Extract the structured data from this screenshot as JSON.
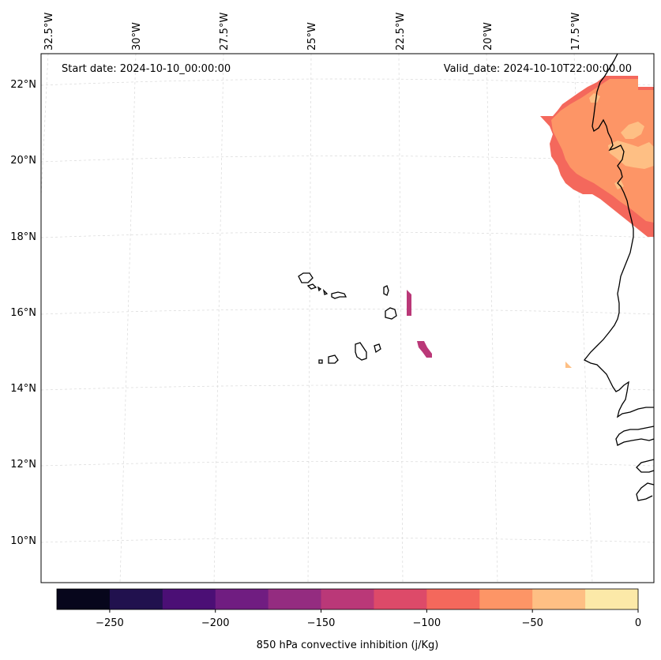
{
  "map": {
    "start_date": "Start date: 2024-10-10_00:00:00",
    "valid_date": "Valid_date: 2024-10-10T22:00:00.00",
    "lon_labels": [
      "32.5°W",
      "30°W",
      "27.5°W",
      "25°W",
      "22.5°W",
      "20°W",
      "17.5°W"
    ],
    "lat_labels": [
      "22°N",
      "20°N",
      "18°N",
      "16°N",
      "14°N",
      "12°N",
      "10°N"
    ],
    "extent": {
      "lon_min": -33.0,
      "lon_max": -16.0,
      "lat_min": 8.9,
      "lat_max": 22.8
    },
    "gridline_color": "#d9d9d9",
    "coastline_color": "#000000"
  },
  "colorbar": {
    "label": "850 hPa convective inhibition (j/Kg)",
    "tick_labels": [
      "−250",
      "−200",
      "−150",
      "−100",
      "−50",
      "0"
    ],
    "levels": [
      -275,
      -250,
      -225,
      -200,
      -175,
      -150,
      -125,
      -100,
      -75,
      -50,
      -25,
      0
    ],
    "colors": [
      "#07061c",
      "#21114e",
      "#4b0f75",
      "#701d81",
      "#942c80",
      "#ba3878",
      "#dd4a69",
      "#f4685c",
      "#fd9566",
      "#febf84",
      "#fce9a8"
    ]
  },
  "fields": [
    {
      "name": "cin-region-northeast",
      "value_range": [
        -100,
        -75
      ]
    },
    {
      "name": "cin-region-northeast-inner",
      "value_range": [
        -75,
        -50
      ]
    },
    {
      "name": "cin-region-northeast-core",
      "value_range": [
        -50,
        -25
      ]
    },
    {
      "name": "cin-patch-central",
      "value_range": [
        -150,
        -125
      ]
    },
    {
      "name": "cin-patch-south",
      "value_range": [
        -150,
        -125
      ]
    },
    {
      "name": "cin-patch-coast",
      "value_range": [
        -50,
        -25
      ]
    }
  ]
}
